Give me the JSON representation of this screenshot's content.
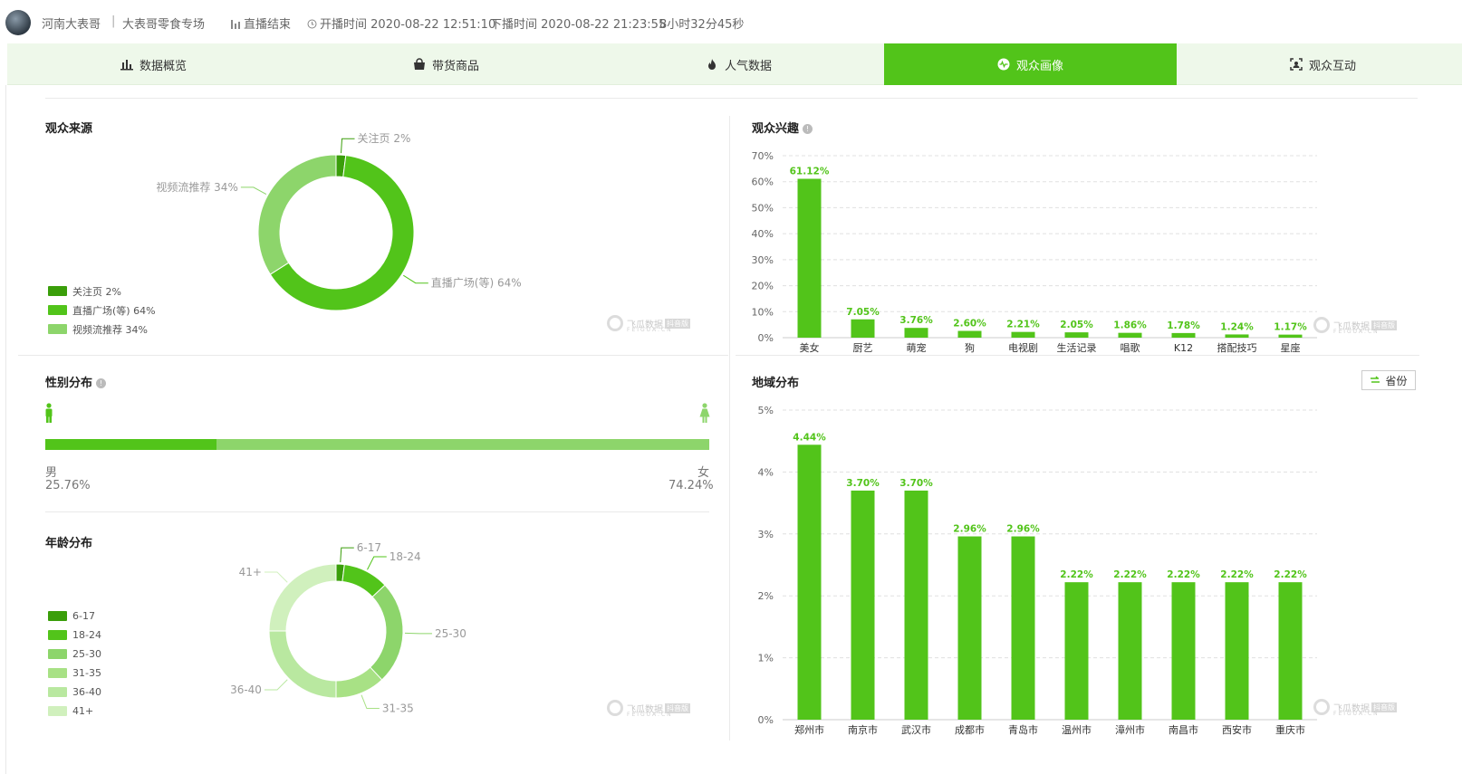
{
  "header": {
    "anchor_name": "河南大表哥",
    "separator": "|",
    "room_title": "大表哥零食专场",
    "live_status": "直播结束",
    "start_label": "开播时间",
    "start_time": "2020-08-22 12:51:10",
    "end_label": "下播时间",
    "end_time": "2020-08-22 21:23:55",
    "duration": "8小时32分45秒"
  },
  "tabs": [
    {
      "label": "数据概览",
      "icon": "bar-chart-icon"
    },
    {
      "label": "带货商品",
      "icon": "shopping-bag-icon"
    },
    {
      "label": "人气数据",
      "icon": "flame-icon"
    },
    {
      "label": "观众画像",
      "icon": "pulse-icon",
      "active": true
    },
    {
      "label": "观众互动",
      "icon": "scan-user-icon"
    }
  ],
  "colors": {
    "accent": "#52c41a",
    "dark": "#3a9e0a",
    "mid": "#8dd56b",
    "light": "#b6e69c",
    "lighter": "#c6edb0",
    "lightest": "#d4f2c3"
  },
  "watermark": {
    "name": "飞瓜数据",
    "tag": "抖音版",
    "sub": "FEIGUA.CN"
  },
  "audience_source": {
    "title": "观众来源",
    "slices": [
      {
        "name": "关注页",
        "pct": 2,
        "label": "关注页 2%",
        "color": "#3a9e0a"
      },
      {
        "name": "直播广场(等)",
        "pct": 64,
        "label": "直播广场(等) 64%",
        "color": "#52c41a"
      },
      {
        "name": "视频流推荐",
        "pct": 34,
        "label": "视频流推荐 34%",
        "color": "#8dd56b"
      }
    ]
  },
  "gender": {
    "title": "性别分布",
    "male_label": "男",
    "male_pct": "25.76%",
    "male_value": 25.76,
    "female_label": "女",
    "female_pct": "74.24%"
  },
  "age": {
    "title": "年龄分布",
    "slices": [
      {
        "name": "6-17",
        "pct": 2,
        "color": "#3a9e0a"
      },
      {
        "name": "18-24",
        "pct": 11,
        "color": "#52c41a"
      },
      {
        "name": "25-30",
        "pct": 25,
        "color": "#8dd56b"
      },
      {
        "name": "31-35",
        "pct": 12,
        "color": "#a8e185"
      },
      {
        "name": "36-40",
        "pct": 25,
        "color": "#b9e8a0"
      },
      {
        "name": "41+",
        "pct": 25,
        "color": "#d0f0bd"
      }
    ]
  },
  "interest": {
    "title": "观众兴趣",
    "chart_data": {
      "type": "bar",
      "categories": [
        "美女",
        "厨艺",
        "萌宠",
        "狗",
        "电视剧",
        "生活记录",
        "唱歌",
        "K12",
        "搭配技巧",
        "星座"
      ],
      "values": [
        61.12,
        7.05,
        3.76,
        2.6,
        2.21,
        2.05,
        1.86,
        1.78,
        1.24,
        1.17
      ],
      "labels": [
        "61.12%",
        "7.05%",
        "3.76%",
        "2.60%",
        "2.21%",
        "2.05%",
        "1.86%",
        "1.78%",
        "1.24%",
        "1.17%"
      ],
      "ylim": [
        0,
        70
      ],
      "yticks": [
        "0%",
        "10%",
        "20%",
        "30%",
        "40%",
        "50%",
        "60%",
        "70%"
      ]
    }
  },
  "region": {
    "title": "地域分布",
    "toggle_label": "省份",
    "chart_data": {
      "type": "bar",
      "categories": [
        "郑州市",
        "南京市",
        "武汉市",
        "成都市",
        "青岛市",
        "温州市",
        "漳州市",
        "南昌市",
        "西安市",
        "重庆市"
      ],
      "values": [
        4.44,
        3.7,
        3.7,
        2.96,
        2.96,
        2.22,
        2.22,
        2.22,
        2.22,
        2.22
      ],
      "labels": [
        "4.44%",
        "3.70%",
        "3.70%",
        "2.96%",
        "2.96%",
        "2.22%",
        "2.22%",
        "2.22%",
        "2.22%",
        "2.22%"
      ],
      "ylim": [
        0,
        5
      ],
      "yticks": [
        "0%",
        "1%",
        "2%",
        "3%",
        "4%",
        "5%"
      ]
    }
  }
}
